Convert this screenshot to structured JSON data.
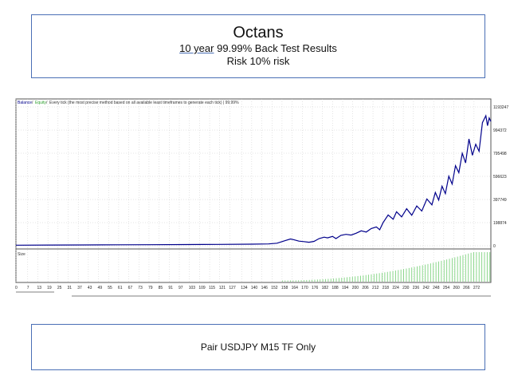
{
  "header": {
    "title": "Octans",
    "subtitle_underlined": "10 year",
    "subtitle_rest": " 99.99% Back Test Results",
    "risk": "Risk 10% risk"
  },
  "footer": {
    "text": "Pair USDJPY M15 TF Only"
  },
  "colors": {
    "balance": "#00008b",
    "equity": "#2ca02c",
    "volume": "#7fd37f",
    "grid": "#c8c8c8",
    "border": "#4a6fb5"
  },
  "chart_data": {
    "type": "line",
    "legend": {
      "balance_label": "Balance",
      "equity_label": "Equity",
      "description": "Every tick (the most precise method based on all available least timeframes to generate each tick) | 99.99%"
    },
    "volume_label": "Size",
    "yticks": [
      "1193247",
      "994372",
      "795498",
      "596623",
      "397749",
      "198874",
      "0"
    ],
    "ytick_values": [
      1193247,
      994372,
      795498,
      596623,
      397749,
      198874,
      0
    ],
    "ylim": [
      0,
      1193247
    ],
    "xticks": [
      "0",
      "7",
      "13",
      "19",
      "25",
      "31",
      "37",
      "43",
      "49",
      "55",
      "61",
      "67",
      "73",
      "79",
      "85",
      "91",
      "97",
      "103",
      "109",
      "115",
      "121",
      "127",
      "134",
      "140",
      "146",
      "152",
      "158",
      "164",
      "170",
      "176",
      "182",
      "188",
      "194",
      "200",
      "206",
      "212",
      "218",
      "224",
      "230",
      "236",
      "242",
      "248",
      "254",
      "260",
      "266",
      "272"
    ],
    "xlim": [
      0,
      282
    ],
    "balance_series": [
      [
        0,
        5000
      ],
      [
        20,
        6000
      ],
      [
        40,
        7000
      ],
      [
        60,
        8000
      ],
      [
        80,
        9000
      ],
      [
        100,
        10000
      ],
      [
        120,
        12000
      ],
      [
        140,
        14000
      ],
      [
        150,
        16000
      ],
      [
        155,
        22000
      ],
      [
        160,
        45000
      ],
      [
        163,
        58000
      ],
      [
        165,
        52000
      ],
      [
        168,
        40000
      ],
      [
        171,
        36000
      ],
      [
        174,
        30000
      ],
      [
        177,
        38000
      ],
      [
        180,
        62000
      ],
      [
        183,
        74000
      ],
      [
        185,
        68000
      ],
      [
        188,
        80000
      ],
      [
        190,
        62000
      ],
      [
        193,
        90000
      ],
      [
        196,
        98000
      ],
      [
        199,
        92000
      ],
      [
        202,
        108000
      ],
      [
        205,
        128000
      ],
      [
        208,
        118000
      ],
      [
        211,
        148000
      ],
      [
        214,
        162000
      ],
      [
        216,
        138000
      ],
      [
        218,
        198000
      ],
      [
        221,
        265000
      ],
      [
        224,
        228000
      ],
      [
        226,
        292000
      ],
      [
        229,
        248000
      ],
      [
        232,
        318000
      ],
      [
        235,
        262000
      ],
      [
        238,
        342000
      ],
      [
        241,
        298000
      ],
      [
        244,
        402000
      ],
      [
        247,
        352000
      ],
      [
        249,
        458000
      ],
      [
        251,
        392000
      ],
      [
        253,
        512000
      ],
      [
        255,
        448000
      ],
      [
        257,
        598000
      ],
      [
        259,
        530000
      ],
      [
        261,
        688000
      ],
      [
        263,
        628000
      ],
      [
        265,
        795000
      ],
      [
        267,
        712000
      ],
      [
        269,
        918000
      ],
      [
        271,
        778000
      ],
      [
        273,
        872000
      ],
      [
        275,
        812000
      ],
      [
        277,
        1058000
      ],
      [
        279,
        1118000
      ],
      [
        280,
        1032000
      ],
      [
        281,
        1098000
      ],
      [
        282,
        1068000
      ]
    ],
    "volume_bars_start": 158,
    "volume_bars_end": 282,
    "volume_values_note": "rising histogram of position sizes"
  }
}
